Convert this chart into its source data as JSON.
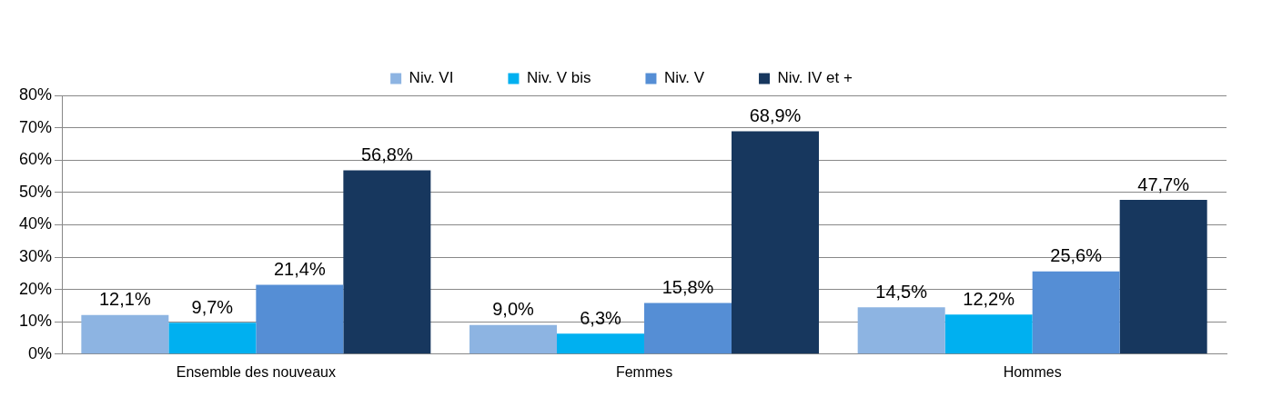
{
  "chart_data": {
    "type": "bar",
    "categories": [
      "Ensemble des nouveaux",
      "Femmes",
      "Hommes"
    ],
    "series": [
      {
        "name": "Niv. VI",
        "color": "#8db4e2",
        "values": [
          12.1,
          9.0,
          14.5
        ],
        "value_labels": [
          "12,1%",
          "9,0%",
          "14,5%"
        ]
      },
      {
        "name": "Niv. V bis",
        "color": "#00b0f0",
        "values": [
          9.7,
          6.3,
          12.2
        ],
        "value_labels": [
          "9,7%",
          "6,3%",
          "12,2%"
        ]
      },
      {
        "name": "Niv. V",
        "color": "#558ed5",
        "values": [
          21.4,
          15.8,
          25.6
        ],
        "value_labels": [
          "21,4%",
          "15,8%",
          "25,6%"
        ]
      },
      {
        "name": "Niv. IV et +",
        "color": "#17375e",
        "values": [
          56.8,
          68.9,
          47.7
        ],
        "value_labels": [
          "56,8%",
          "68,9%",
          "47,7%"
        ]
      }
    ],
    "ylim": [
      0,
      80
    ],
    "yticks": [
      {
        "value": 0,
        "label": "0%"
      },
      {
        "value": 10,
        "label": "10%"
      },
      {
        "value": 20,
        "label": "20%"
      },
      {
        "value": 30,
        "label": "30%"
      },
      {
        "value": 40,
        "label": "40%"
      },
      {
        "value": 50,
        "label": "50%"
      },
      {
        "value": 60,
        "label": "60%"
      },
      {
        "value": 70,
        "label": "70%"
      },
      {
        "value": 80,
        "label": "80%"
      }
    ],
    "grid": "y",
    "legend": "top"
  }
}
